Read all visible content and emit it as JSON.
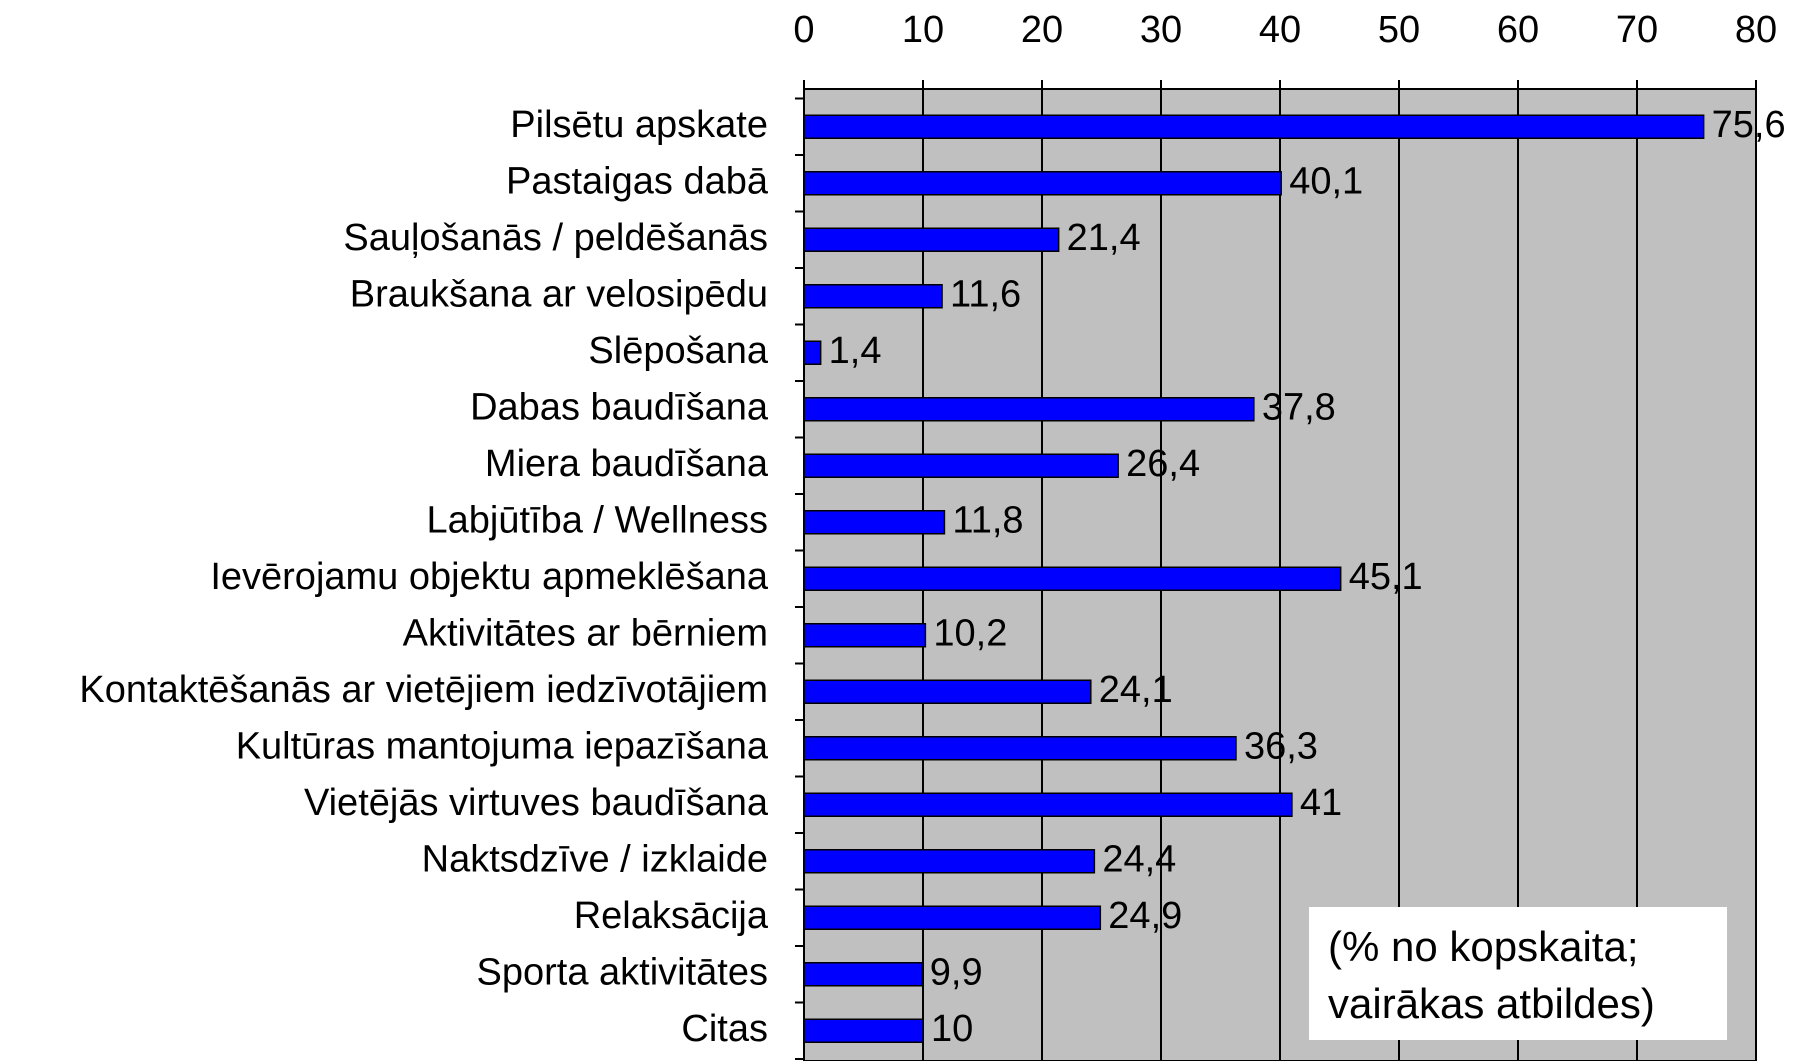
{
  "chart_data": {
    "type": "bar",
    "orientation": "horizontal",
    "categories": [
      "Pilsētu apskate",
      "Pastaigas dabā",
      "Sauļošanās / peldēšanās",
      "Braukšana ar velosipēdu",
      "Slēpošana",
      "Dabas baudīšana",
      "Miera baudīšana",
      "Labjūtība / Wellness",
      "Ievērojamu objektu apmeklēšana",
      "Aktivitātes ar bērniem",
      "Kontaktēšanās ar vietējiem iedzīvotājiem",
      "Kultūras mantojuma iepazīšana",
      "Vietējās virtuves baudīšana",
      "Naktsdzīve / izklaide",
      "Relaksācija",
      "Sporta aktivitātes",
      "Citas"
    ],
    "values": [
      75.6,
      40.1,
      21.4,
      11.6,
      1.4,
      37.8,
      26.4,
      11.8,
      45.1,
      10.2,
      24.1,
      36.3,
      41,
      24.4,
      24.9,
      9.9,
      10
    ],
    "value_labels": [
      "75,6",
      "40,1",
      "21,4",
      "11,6",
      "1,4",
      "37,8",
      "26,4",
      "11,8",
      "45,1",
      "10,2",
      "24,1",
      "36,3",
      "41",
      "24,4",
      "24,9",
      "9,9",
      "10"
    ],
    "color": "#0000ff",
    "xlim": [
      0,
      80
    ],
    "xticks": [
      0,
      10,
      20,
      30,
      40,
      50,
      60,
      70,
      80
    ],
    "grid": true,
    "plot_background": "#c0c0c0",
    "annotation": [
      "(% no kopskaita;",
      "vairākas atbildes)"
    ]
  }
}
